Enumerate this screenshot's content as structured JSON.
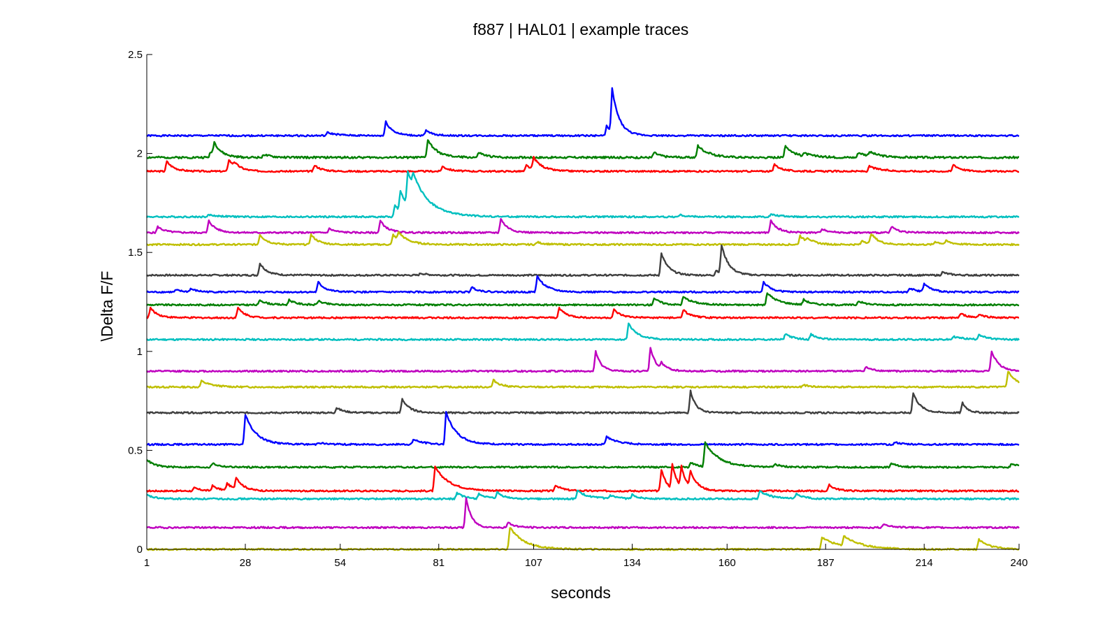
{
  "chart_data": {
    "type": "line",
    "title": "f887 | HAL01 | example traces",
    "xlabel": "seconds",
    "ylabel": "\\Delta F/F",
    "xlim": [
      1,
      240
    ],
    "ylim": [
      0,
      2.5
    ],
    "xticks": [
      1,
      28,
      54,
      81,
      107,
      134,
      160,
      187,
      214,
      240
    ],
    "xtick_labels": [
      "1",
      "28",
      "54",
      "81",
      "107",
      "134",
      "160",
      "187",
      "214",
      "240"
    ],
    "yticks": [
      0,
      0.5,
      1,
      1.5,
      2,
      2.5
    ],
    "ytick_labels": [
      "0",
      "0.5",
      "1",
      "1.5",
      "2",
      "2.5"
    ],
    "grid": false,
    "series": [
      {
        "color": "#0000ff",
        "baseline": 2.09,
        "noise": 0.004,
        "events": [
          {
            "t": 50.5,
            "a": 0.015,
            "tau": 3
          },
          {
            "t": 66.5,
            "a": 0.07,
            "tau": 2
          },
          {
            "t": 77.5,
            "a": 0.025,
            "tau": 2
          },
          {
            "t": 127,
            "a": 0.05,
            "tau": 1.5
          },
          {
            "t": 128.5,
            "a": 0.22,
            "tau": 2
          }
        ]
      },
      {
        "color": "#007f00",
        "baseline": 1.98,
        "noise": 0.005,
        "events": [
          {
            "t": 18.5,
            "a": 0.03,
            "tau": 2
          },
          {
            "t": 19.5,
            "a": 0.06,
            "tau": 2
          },
          {
            "t": 33,
            "a": 0.015,
            "tau": 2
          },
          {
            "t": 78,
            "a": 0.09,
            "tau": 2.5
          },
          {
            "t": 92,
            "a": 0.025,
            "tau": 2
          },
          {
            "t": 140,
            "a": 0.025,
            "tau": 2
          },
          {
            "t": 152,
            "a": 0.06,
            "tau": 3
          },
          {
            "t": 176,
            "a": 0.06,
            "tau": 2.5
          },
          {
            "t": 181,
            "a": 0.015,
            "tau": 3
          },
          {
            "t": 196,
            "a": 0.025,
            "tau": 3
          },
          {
            "t": 199,
            "a": 0.02,
            "tau": 3
          }
        ]
      },
      {
        "color": "#ff0000",
        "baseline": 1.91,
        "noise": 0.004,
        "events": [
          {
            "t": 6.5,
            "a": 0.05,
            "tau": 2
          },
          {
            "t": 23.5,
            "a": 0.06,
            "tau": 2
          },
          {
            "t": 25,
            "a": 0.02,
            "tau": 2
          },
          {
            "t": 47,
            "a": 0.03,
            "tau": 2
          },
          {
            "t": 82,
            "a": 0.025,
            "tau": 2
          },
          {
            "t": 105,
            "a": 0.03,
            "tau": 2
          },
          {
            "t": 107,
            "a": 0.06,
            "tau": 2.5
          },
          {
            "t": 173,
            "a": 0.035,
            "tau": 2
          },
          {
            "t": 199,
            "a": 0.025,
            "tau": 3
          },
          {
            "t": 222,
            "a": 0.035,
            "tau": 2
          }
        ]
      },
      {
        "color": "#00bfbf",
        "baseline": 1.68,
        "noise": 0.004,
        "events": [
          {
            "t": 18,
            "a": 0.01,
            "tau": 3
          },
          {
            "t": 69,
            "a": 0.06,
            "tau": 2
          },
          {
            "t": 70.5,
            "a": 0.1,
            "tau": 3
          },
          {
            "t": 72.5,
            "a": 0.17,
            "tau": 5
          },
          {
            "t": 74,
            "a": 0.06,
            "tau": 4
          },
          {
            "t": 147,
            "a": 0.01,
            "tau": 2
          },
          {
            "t": 172,
            "a": 0.012,
            "tau": 3
          }
        ]
      },
      {
        "color": "#bf00bf",
        "baseline": 1.6,
        "noise": 0.004,
        "events": [
          {
            "t": 4,
            "a": 0.03,
            "tau": 2
          },
          {
            "t": 18,
            "a": 0.06,
            "tau": 2
          },
          {
            "t": 51,
            "a": 0.02,
            "tau": 2
          },
          {
            "t": 65,
            "a": 0.06,
            "tau": 2
          },
          {
            "t": 98,
            "a": 0.07,
            "tau": 2
          },
          {
            "t": 172,
            "a": 0.06,
            "tau": 2
          },
          {
            "t": 186,
            "a": 0.02,
            "tau": 2
          },
          {
            "t": 205,
            "a": 0.03,
            "tau": 2
          }
        ]
      },
      {
        "color": "#bfbf00",
        "baseline": 1.54,
        "noise": 0.004,
        "events": [
          {
            "t": 32,
            "a": 0.05,
            "tau": 2
          },
          {
            "t": 46,
            "a": 0.05,
            "tau": 2
          },
          {
            "t": 68.5,
            "a": 0.05,
            "tau": 2
          },
          {
            "t": 70,
            "a": 0.04,
            "tau": 3
          },
          {
            "t": 108,
            "a": 0.012,
            "tau": 2
          },
          {
            "t": 180,
            "a": 0.045,
            "tau": 2
          },
          {
            "t": 182,
            "a": 0.02,
            "tau": 2
          },
          {
            "t": 197,
            "a": 0.02,
            "tau": 2
          },
          {
            "t": 199.5,
            "a": 0.05,
            "tau": 2
          },
          {
            "t": 217,
            "a": 0.015,
            "tau": 2
          },
          {
            "t": 220,
            "a": 0.015,
            "tau": 2
          }
        ]
      },
      {
        "color": "#3f3f3f",
        "baseline": 1.385,
        "noise": 0.004,
        "events": [
          {
            "t": 32,
            "a": 0.06,
            "tau": 2
          },
          {
            "t": 76,
            "a": 0.01,
            "tau": 2
          },
          {
            "t": 142,
            "a": 0.11,
            "tau": 2
          },
          {
            "t": 157,
            "a": 0.025,
            "tau": 2
          },
          {
            "t": 158.5,
            "a": 0.14,
            "tau": 2
          },
          {
            "t": 219,
            "a": 0.015,
            "tau": 2
          }
        ]
      },
      {
        "color": "#0000ff",
        "baseline": 1.3,
        "noise": 0.004,
        "events": [
          {
            "t": 9,
            "a": 0.01,
            "tau": 2
          },
          {
            "t": 13,
            "a": 0.015,
            "tau": 2
          },
          {
            "t": 48,
            "a": 0.05,
            "tau": 2
          },
          {
            "t": 90,
            "a": 0.025,
            "tau": 2
          },
          {
            "t": 108,
            "a": 0.08,
            "tau": 2.5
          },
          {
            "t": 170,
            "a": 0.05,
            "tau": 2
          },
          {
            "t": 210,
            "a": 0.02,
            "tau": 2
          },
          {
            "t": 214,
            "a": 0.04,
            "tau": 2
          }
        ]
      },
      {
        "color": "#007f00",
        "baseline": 1.235,
        "noise": 0.004,
        "events": [
          {
            "t": 32,
            "a": 0.025,
            "tau": 2
          },
          {
            "t": 40,
            "a": 0.025,
            "tau": 2
          },
          {
            "t": 48,
            "a": 0.02,
            "tau": 2
          },
          {
            "t": 140,
            "a": 0.035,
            "tau": 2
          },
          {
            "t": 148,
            "a": 0.04,
            "tau": 3
          },
          {
            "t": 171,
            "a": 0.06,
            "tau": 3
          },
          {
            "t": 181,
            "a": 0.025,
            "tau": 2
          },
          {
            "t": 196,
            "a": 0.02,
            "tau": 2
          }
        ]
      },
      {
        "color": "#ff0000",
        "baseline": 1.17,
        "noise": 0.004,
        "events": [
          {
            "t": 2,
            "a": 0.05,
            "tau": 2
          },
          {
            "t": 26,
            "a": 0.05,
            "tau": 2
          },
          {
            "t": 114,
            "a": 0.05,
            "tau": 2
          },
          {
            "t": 129,
            "a": 0.04,
            "tau": 2
          },
          {
            "t": 148,
            "a": 0.04,
            "tau": 2
          },
          {
            "t": 224,
            "a": 0.02,
            "tau": 2
          },
          {
            "t": 229,
            "a": 0.015,
            "tau": 2
          }
        ]
      },
      {
        "color": "#00bfbf",
        "baseline": 1.06,
        "noise": 0.004,
        "events": [
          {
            "t": 133,
            "a": 0.08,
            "tau": 2.5
          },
          {
            "t": 176,
            "a": 0.03,
            "tau": 2
          },
          {
            "t": 183,
            "a": 0.025,
            "tau": 2
          },
          {
            "t": 222,
            "a": 0.015,
            "tau": 3
          },
          {
            "t": 229,
            "a": 0.025,
            "tau": 2
          }
        ]
      },
      {
        "color": "#bf00bf",
        "baseline": 0.9,
        "noise": 0.004,
        "events": [
          {
            "t": 124,
            "a": 0.1,
            "tau": 1.5
          },
          {
            "t": 139,
            "a": 0.12,
            "tau": 1.5
          },
          {
            "t": 142,
            "a": 0.03,
            "tau": 2
          },
          {
            "t": 198,
            "a": 0.02,
            "tau": 2
          },
          {
            "t": 232.5,
            "a": 0.1,
            "tau": 2
          }
        ]
      },
      {
        "color": "#bfbf00",
        "baseline": 0.82,
        "noise": 0.004,
        "events": [
          {
            "t": 16,
            "a": 0.03,
            "tau": 3
          },
          {
            "t": 96,
            "a": 0.035,
            "tau": 2
          },
          {
            "t": 181,
            "a": 0.01,
            "tau": 2
          },
          {
            "t": 237,
            "a": 0.08,
            "tau": 2.5
          }
        ]
      },
      {
        "color": "#3f3f3f",
        "baseline": 0.69,
        "noise": 0.004,
        "events": [
          {
            "t": 53,
            "a": 0.025,
            "tau": 2
          },
          {
            "t": 71,
            "a": 0.07,
            "tau": 2
          },
          {
            "t": 150,
            "a": 0.11,
            "tau": 1.5
          },
          {
            "t": 211,
            "a": 0.1,
            "tau": 2
          },
          {
            "t": 224.5,
            "a": 0.05,
            "tau": 1.5
          }
        ]
      },
      {
        "color": "#0000ff",
        "baseline": 0.53,
        "noise": 0.004,
        "events": [
          {
            "t": 28,
            "a": 0.15,
            "tau": 3
          },
          {
            "t": 48,
            "a": 0.01,
            "tau": 2
          },
          {
            "t": 74,
            "a": 0.025,
            "tau": 3
          },
          {
            "t": 83,
            "a": 0.16,
            "tau": 3
          },
          {
            "t": 127,
            "a": 0.04,
            "tau": 3
          },
          {
            "t": 206,
            "a": 0.01,
            "tau": 2
          }
        ]
      },
      {
        "color": "#007f00",
        "baseline": 0.415,
        "noise": 0.004,
        "events": [
          {
            "t": 1,
            "a": 0.04,
            "tau": 2
          },
          {
            "t": 19,
            "a": 0.02,
            "tau": 2
          },
          {
            "t": 150,
            "a": 0.025,
            "tau": 2
          },
          {
            "t": 154,
            "a": 0.12,
            "tau": 4
          },
          {
            "t": 173,
            "a": 0.015,
            "tau": 2
          },
          {
            "t": 205,
            "a": 0.02,
            "tau": 2
          },
          {
            "t": 238,
            "a": 0.02,
            "tau": 2
          }
        ]
      },
      {
        "color": "#ff0000",
        "baseline": 0.295,
        "noise": 0.004,
        "events": [
          {
            "t": 14,
            "a": 0.015,
            "tau": 2
          },
          {
            "t": 19,
            "a": 0.025,
            "tau": 2
          },
          {
            "t": 23,
            "a": 0.035,
            "tau": 2
          },
          {
            "t": 25.5,
            "a": 0.06,
            "tau": 2
          },
          {
            "t": 80,
            "a": 0.12,
            "tau": 4
          },
          {
            "t": 113,
            "a": 0.03,
            "tau": 2
          },
          {
            "t": 142,
            "a": 0.11,
            "tau": 1.5
          },
          {
            "t": 145,
            "a": 0.12,
            "tau": 1.5
          },
          {
            "t": 147.5,
            "a": 0.1,
            "tau": 1.5
          },
          {
            "t": 150,
            "a": 0.08,
            "tau": 2
          },
          {
            "t": 188,
            "a": 0.03,
            "tau": 2
          }
        ]
      },
      {
        "color": "#00bfbf",
        "baseline": 0.255,
        "noise": 0.004,
        "events": [
          {
            "t": 1,
            "a": 0.02,
            "tau": 2
          },
          {
            "t": 86,
            "a": 0.03,
            "tau": 2
          },
          {
            "t": 92,
            "a": 0.025,
            "tau": 2
          },
          {
            "t": 97,
            "a": 0.03,
            "tau": 2
          },
          {
            "t": 119,
            "a": 0.04,
            "tau": 3
          },
          {
            "t": 128,
            "a": 0.015,
            "tau": 2
          },
          {
            "t": 134,
            "a": 0.02,
            "tau": 2
          },
          {
            "t": 169,
            "a": 0.04,
            "tau": 3
          },
          {
            "t": 179,
            "a": 0.025,
            "tau": 2
          }
        ]
      },
      {
        "color": "#bf00bf",
        "baseline": 0.11,
        "noise": 0.004,
        "events": [
          {
            "t": 88.5,
            "a": 0.15,
            "tau": 1.5
          },
          {
            "t": 100,
            "a": 0.025,
            "tau": 2
          },
          {
            "t": 203,
            "a": 0.02,
            "tau": 2
          }
        ]
      },
      {
        "color": "#bfbf00",
        "baseline": 0.0,
        "noise": 0.004,
        "events": [
          {
            "t": 100.5,
            "a": 0.11,
            "tau": 4
          },
          {
            "t": 186,
            "a": 0.06,
            "tau": 5
          },
          {
            "t": 192,
            "a": 0.05,
            "tau": 5
          },
          {
            "t": 229,
            "a": 0.05,
            "tau": 3
          }
        ]
      }
    ]
  }
}
